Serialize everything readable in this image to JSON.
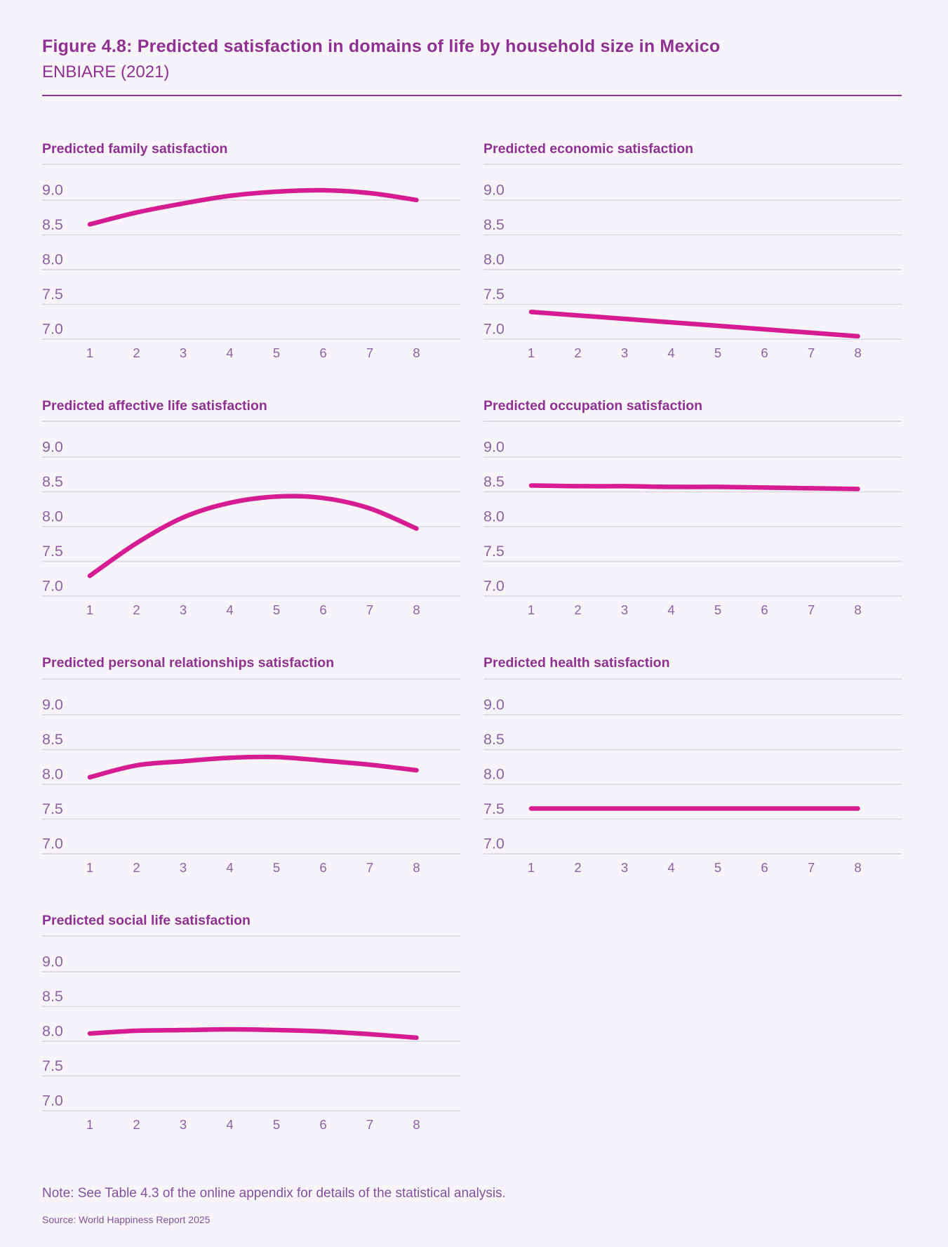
{
  "page": {
    "title": "Figure 4.8: Predicted satisfaction in domains of life by household size in Mexico",
    "subtitle": "ENBIARE (2021)",
    "note": "Note: See Table 4.3 of the online appendix for details of the statistical analysis.",
    "source": "Source: World Happiness Report 2025"
  },
  "colors": {
    "background": "#f6f4f8",
    "title_purple": "#8e3191",
    "axis_label_purple": "#8d62a0",
    "gridline": "#e2dbe8",
    "trend_line_pink": "#d61c93",
    "title_rule": "#8e3191"
  },
  "chart_data": [
    {
      "id": "family",
      "type": "line",
      "title": "Predicted family satisfaction",
      "xlabel": "",
      "ylabel": "",
      "categories": [
        "1",
        "2",
        "3",
        "4",
        "5",
        "6",
        "7",
        "8"
      ],
      "values": [
        8.5,
        8.67,
        8.8,
        8.91,
        8.97,
        8.99,
        8.95,
        8.85
      ],
      "yticks": [
        "9.0",
        "8.5",
        "8.0",
        "7.5",
        "7.0"
      ],
      "ylim": [
        6.85,
        9.35
      ],
      "grid": true,
      "legend": "none"
    },
    {
      "id": "economic",
      "type": "line",
      "title": "Predicted economic satisfaction",
      "xlabel": "",
      "ylabel": "",
      "categories": [
        "1",
        "2",
        "3",
        "4",
        "5",
        "6",
        "7",
        "8"
      ],
      "values": [
        7.24,
        7.19,
        7.14,
        7.09,
        7.04,
        6.99,
        6.94,
        6.89
      ],
      "yticks": [
        "9.0",
        "8.5",
        "8.0",
        "7.5",
        "7.0"
      ],
      "ylim": [
        6.85,
        9.35
      ],
      "grid": true,
      "legend": "none"
    },
    {
      "id": "affective-life",
      "type": "line",
      "title": "Predicted affective life satisfaction",
      "xlabel": "",
      "ylabel": "",
      "categories": [
        "1",
        "2",
        "3",
        "4",
        "5",
        "6",
        "7",
        "8"
      ],
      "values": [
        7.14,
        7.61,
        7.98,
        8.19,
        8.28,
        8.26,
        8.11,
        7.82
      ],
      "yticks": [
        "9.0",
        "8.5",
        "8.0",
        "7.5",
        "7.0"
      ],
      "ylim": [
        6.85,
        9.35
      ],
      "grid": true,
      "legend": "none"
    },
    {
      "id": "occupation",
      "type": "line",
      "title": "Predicted occupation satisfaction",
      "xlabel": "",
      "ylabel": "",
      "categories": [
        "1",
        "2",
        "3",
        "4",
        "5",
        "6",
        "7",
        "8"
      ],
      "values": [
        8.44,
        8.43,
        8.43,
        8.42,
        8.42,
        8.41,
        8.4,
        8.39
      ],
      "yticks": [
        "9.0",
        "8.5",
        "8.0",
        "7.5",
        "7.0"
      ],
      "ylim": [
        6.85,
        9.35
      ],
      "grid": true,
      "legend": "none"
    },
    {
      "id": "personal-relationships",
      "type": "line",
      "title": "Predicted personal relationships satisfaction",
      "xlabel": "",
      "ylabel": "",
      "categories": [
        "1",
        "2",
        "3",
        "4",
        "5",
        "6",
        "7",
        "8"
      ],
      "values": [
        7.95,
        8.12,
        8.18,
        8.23,
        8.24,
        8.19,
        8.13,
        8.05
      ],
      "yticks": [
        "9.0",
        "8.5",
        "8.0",
        "7.5",
        "7.0"
      ],
      "ylim": [
        6.85,
        9.35
      ],
      "grid": true,
      "legend": "none"
    },
    {
      "id": "health",
      "type": "line",
      "title": "Predicted health satisfaction",
      "xlabel": "",
      "ylabel": "",
      "categories": [
        "1",
        "2",
        "3",
        "4",
        "5",
        "6",
        "7",
        "8"
      ],
      "values": [
        7.5,
        7.5,
        7.5,
        7.5,
        7.5,
        7.5,
        7.5,
        7.5
      ],
      "yticks": [
        "9.0",
        "8.5",
        "8.0",
        "7.5",
        "7.0"
      ],
      "ylim": [
        6.85,
        9.35
      ],
      "grid": true,
      "legend": "none"
    },
    {
      "id": "social-life",
      "type": "line",
      "title": "Predicted social life satisfaction",
      "xlabel": "",
      "ylabel": "",
      "categories": [
        "1",
        "2",
        "3",
        "4",
        "5",
        "6",
        "7",
        "8"
      ],
      "values": [
        7.96,
        8.0,
        8.01,
        8.02,
        8.01,
        7.99,
        7.95,
        7.9
      ],
      "yticks": [
        "9.0",
        "8.5",
        "8.0",
        "7.5",
        "7.0"
      ],
      "ylim": [
        6.85,
        9.35
      ],
      "grid": true,
      "legend": "none"
    }
  ]
}
